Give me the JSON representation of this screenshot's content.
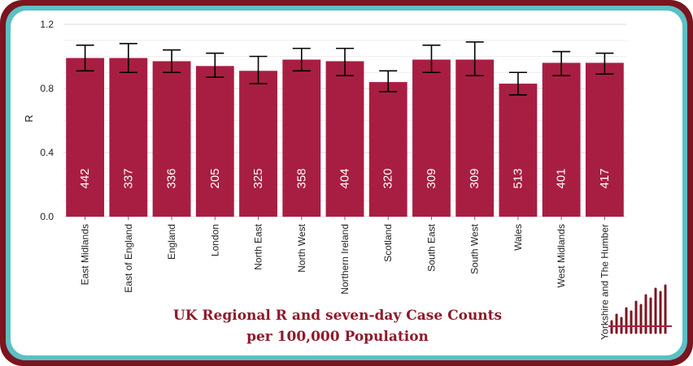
{
  "chart_data": {
    "type": "bar",
    "title_lines": [
      "UK Regional R and seven-day Case Counts",
      "per 100,000 Population"
    ],
    "ylabel": "R",
    "xlabel": "",
    "ylim": [
      0,
      1.2
    ],
    "yticks": [
      "0.0",
      "0.4",
      "0.8",
      "1.2"
    ],
    "categories": [
      "East Midlands",
      "East of England",
      "England",
      "London",
      "North East",
      "North West",
      "Northern Ireland",
      "Scotland",
      "South East",
      "South West",
      "Wales",
      "West Midlands",
      "Yorkshire and The Humber"
    ],
    "series": [
      {
        "name": "R",
        "values": [
          0.99,
          0.99,
          0.97,
          0.94,
          0.91,
          0.98,
          0.97,
          0.84,
          0.98,
          0.98,
          0.83,
          0.96,
          0.96
        ]
      },
      {
        "name": "R lower bound",
        "values": [
          0.91,
          0.9,
          0.9,
          0.87,
          0.83,
          0.91,
          0.88,
          0.78,
          0.9,
          0.88,
          0.76,
          0.88,
          0.89
        ]
      },
      {
        "name": "R upper bound",
        "values": [
          1.07,
          1.08,
          1.04,
          1.02,
          1.0,
          1.05,
          1.05,
          0.91,
          1.07,
          1.09,
          0.9,
          1.03,
          1.02
        ]
      }
    ],
    "bar_labels": [
      "442",
      "337",
      "336",
      "205",
      "325",
      "358",
      "404",
      "320",
      "309",
      "309",
      "513",
      "401",
      "417"
    ],
    "grid": true
  },
  "colors": {
    "bar": "#a81e42",
    "frame_outer": "#7b1520",
    "frame_teal": "#5bc0c4",
    "title": "#8e1a2b",
    "grid": "#dddddd",
    "errorbar": "#000000"
  },
  "logo": {
    "icon": "bar-chart-logo-icon"
  }
}
